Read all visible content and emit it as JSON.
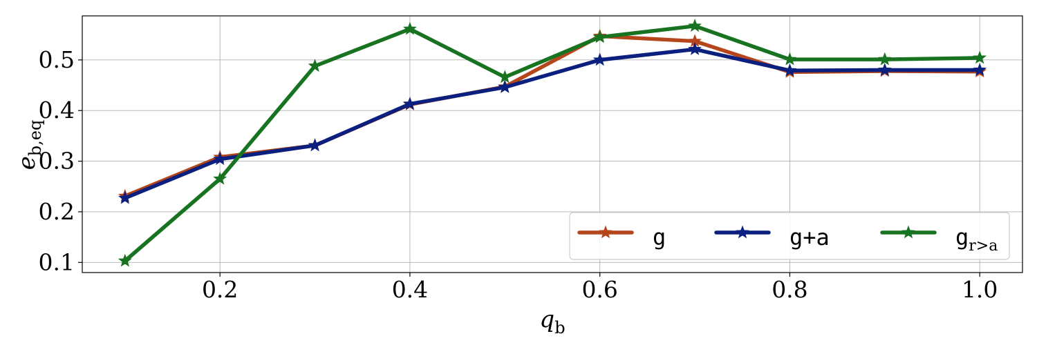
{
  "chart_data": {
    "type": "line",
    "x": [
      0.1,
      0.2,
      0.3,
      0.4,
      0.5,
      0.6,
      0.7,
      0.8,
      0.9,
      1.0
    ],
    "series": [
      {
        "name": "g",
        "color": "#b5451b",
        "values": [
          0.231,
          0.308,
          0.331,
          0.412,
          0.447,
          0.547,
          0.537,
          0.476,
          0.478,
          0.477
        ]
      },
      {
        "name": "g+a",
        "color": "#0b1f7f",
        "values": [
          0.227,
          0.304,
          0.331,
          0.413,
          0.446,
          0.5,
          0.521,
          0.479,
          0.48,
          0.48
        ]
      },
      {
        "name": "g",
        "name_subscript": "r>a",
        "color": "#187321",
        "values": [
          0.103,
          0.265,
          0.488,
          0.561,
          0.466,
          0.545,
          0.567,
          0.501,
          0.501,
          0.504
        ]
      }
    ],
    "xlabel": {
      "base": "q",
      "sub": "b"
    },
    "ylabel": {
      "base": "e",
      "sub": "b,eq"
    },
    "xticks": [
      "0.2",
      "0.4",
      "0.6",
      "0.8",
      "1.0"
    ],
    "xtick_values": [
      0.2,
      0.4,
      0.6,
      0.8,
      1.0
    ],
    "yticks": [
      "0.1",
      "0.2",
      "0.3",
      "0.4",
      "0.5"
    ],
    "ytick_values": [
      0.1,
      0.2,
      0.3,
      0.4,
      0.5
    ],
    "xlim": [
      0.055,
      1.045
    ],
    "ylim": [
      0.08,
      0.587
    ],
    "grid": true,
    "marker": "star",
    "legend_position": "lower-right"
  }
}
